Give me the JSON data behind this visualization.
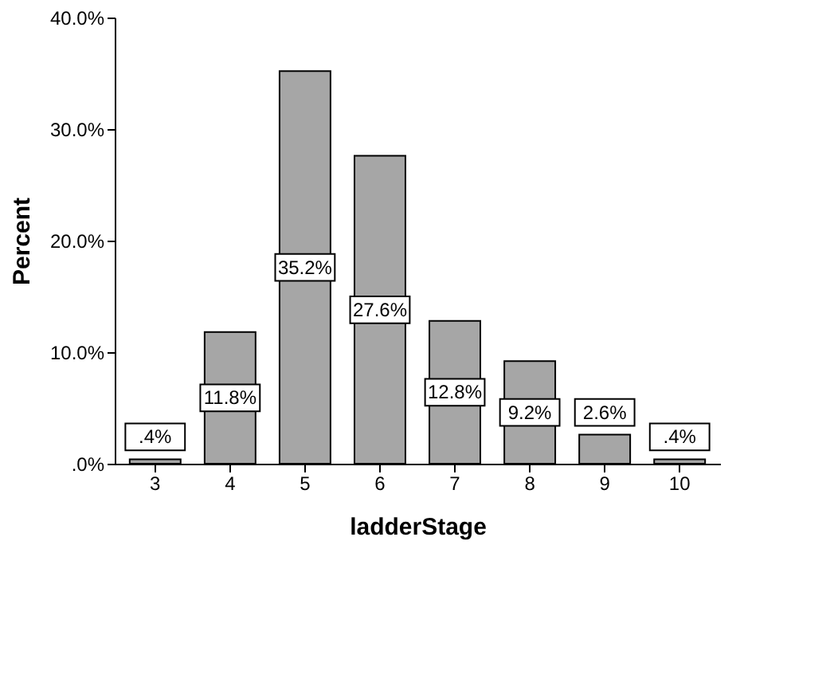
{
  "chart_data": {
    "type": "bar",
    "xlabel": "ladderStage",
    "ylabel": "Percent",
    "categories": [
      "3",
      "4",
      "5",
      "6",
      "7",
      "8",
      "9",
      "10"
    ],
    "values": [
      0.4,
      11.8,
      35.2,
      27.6,
      12.8,
      9.2,
      2.6,
      0.4
    ],
    "value_labels": [
      ".4%",
      "11.8%",
      "35.2%",
      "27.6%",
      "12.8%",
      "9.2%",
      "2.6%",
      ".4%"
    ],
    "color": "#a6a6a6",
    "ylim": [
      0,
      40
    ],
    "yticks": [
      {
        "value": 0,
        "label": ".0%"
      },
      {
        "value": 10,
        "label": "10.0%"
      },
      {
        "value": 20,
        "label": "20.0%"
      },
      {
        "value": 30,
        "label": "30.0%"
      },
      {
        "value": 40,
        "label": "40.0%"
      }
    ],
    "grid": false
  }
}
